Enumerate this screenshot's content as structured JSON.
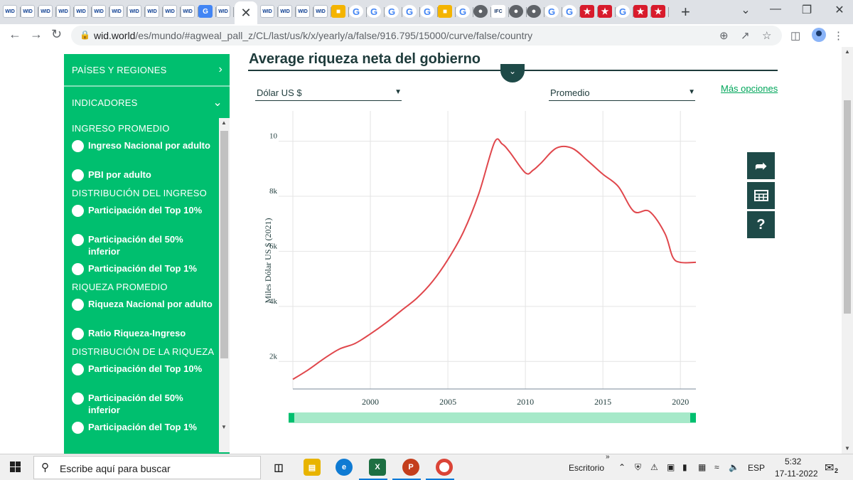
{
  "browser": {
    "url_host": "wid.world",
    "url_path": "/es/mundo/#agweal_pall_z/CL/last/us/k/x/yearly/a/false/916.795/15000/curve/false/country",
    "tab_wid_label": "WID",
    "tab_ifc_label": "IFC"
  },
  "sidebar": {
    "regions_label": "PAÍSES Y REGIONES",
    "indicators_label": "INDICADORES",
    "groups": [
      {
        "title": "INGRESO PROMEDIO",
        "items": [
          "Ingreso Nacional por adulto",
          "PBI por adulto"
        ]
      },
      {
        "title": "DISTRIBUCIÓN DEL INGRESO",
        "items": [
          "Participación del Top 10%",
          "Participación del 50% inferior",
          "Participación del Top 1%"
        ]
      },
      {
        "title": "RIQUEZA PROMEDIO",
        "items": [
          "Riqueza Nacional por adulto",
          "Ratio Riqueza-Ingreso"
        ]
      },
      {
        "title": "DISTRIBUCIÓN DE LA RIQUEZA",
        "items": [
          "Participación del Top 10%",
          "Participación del 50% inferior",
          "Participación del Top 1%"
        ]
      }
    ]
  },
  "main": {
    "title": "Average riqueza neta del gobierno",
    "currency_select": "Dólar US $",
    "stat_select": "Promedio",
    "more_options": "Más opciones"
  },
  "chart_data": {
    "type": "line",
    "ylabel": "Miles Dólar US $ (2021)",
    "xlim": [
      1995,
      2021
    ],
    "ylim": [
      1000,
      11100
    ],
    "x_ticks": [
      "2000",
      "2005",
      "2010",
      "2015",
      "2020"
    ],
    "y_ticks": [
      "2k",
      "4k",
      "6k",
      "8k",
      "10"
    ],
    "line_color": "#e0474c",
    "grid": true,
    "series": [
      {
        "x": [
          1995,
          1996,
          1997,
          1998,
          1999,
          2000,
          2001,
          2002,
          2003,
          2004,
          2005,
          2006,
          2007,
          2008,
          2008.5,
          2009,
          2010,
          2010.5,
          2011,
          2012,
          2013,
          2014,
          2015,
          2016,
          2017,
          2018,
          2019,
          2019.5,
          2020,
          2021
        ],
        "y": [
          1350,
          1700,
          2100,
          2450,
          2650,
          3000,
          3400,
          3850,
          4300,
          4900,
          5700,
          6700,
          8100,
          9950,
          9900,
          9600,
          8850,
          8950,
          9200,
          9750,
          9750,
          9300,
          8800,
          8350,
          7450,
          7450,
          6650,
          5800,
          5600,
          5600
        ]
      }
    ]
  },
  "side_buttons": [
    "share-icon",
    "table-icon",
    "help-icon"
  ],
  "taskbar": {
    "search_placeholder": "Escribe aquí para buscar",
    "desktop_label": "Escritorio",
    "language": "ESP",
    "time": "5:32",
    "date": "17-11-2022",
    "notification_count": "2"
  }
}
